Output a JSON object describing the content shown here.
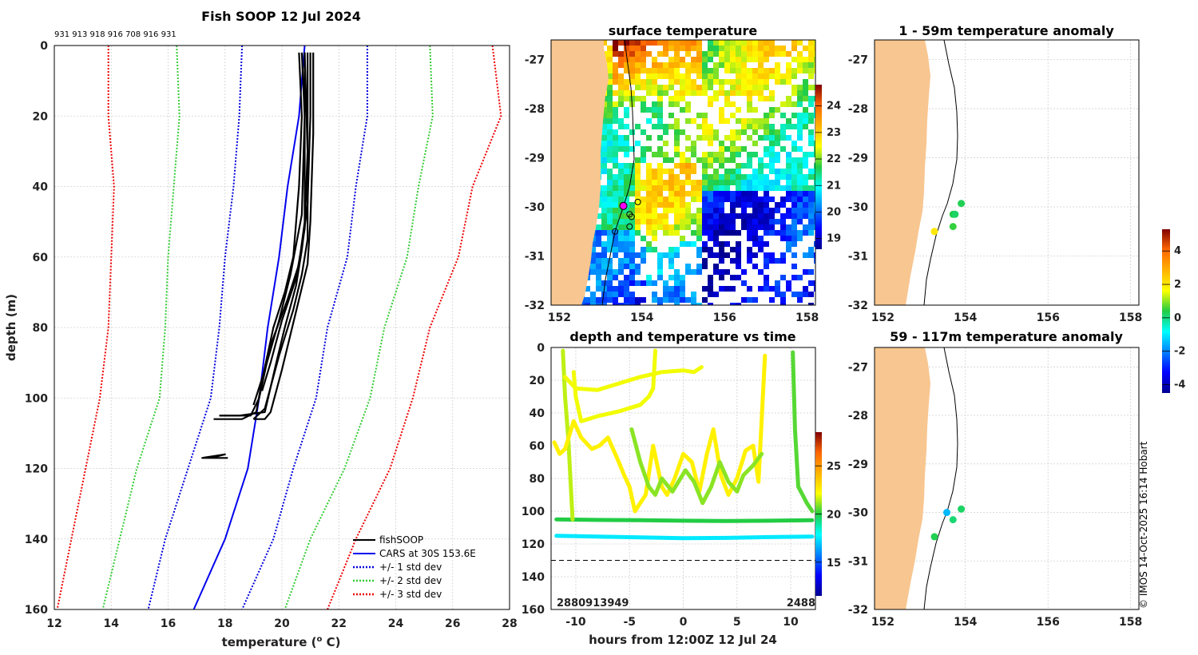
{
  "copyright": "© IMOS 14-Oct-2025 16:14 Hobart",
  "colors": {
    "land": "#f8c690",
    "black": "#000000",
    "cars": "#0000ee",
    "std1": "#0000dd",
    "std2": "#33cc33",
    "std3": "#ee0000"
  },
  "chart_data": [
    {
      "id": "profile",
      "type": "line",
      "title": "Fish SOOP 12 Jul 2024",
      "top_labels": "931 913 918 916 708 916 931",
      "xlabel": "temperature (",
      "xlabel_sup": "o",
      "xlabel_end": " C)",
      "ylabel": "depth (m)",
      "xlim": [
        12,
        28
      ],
      "ylim": [
        0,
        160
      ],
      "xticks": [
        "12",
        "14",
        "16",
        "18",
        "20",
        "22",
        "24",
        "26",
        "28"
      ],
      "yticks": [
        "0",
        "20",
        "40",
        "60",
        "80",
        "100",
        "120",
        "140",
        "160"
      ],
      "legend": [
        "fishSOOP",
        "CARS at 30S 153.6E",
        "+/- 1 std dev",
        "+/- 2 std dev",
        "+/- 3 std dev"
      ],
      "cars": [
        [
          20.8,
          0
        ],
        [
          20.7,
          10
        ],
        [
          20.6,
          20
        ],
        [
          20.2,
          40
        ],
        [
          19.9,
          60
        ],
        [
          19.5,
          80
        ],
        [
          19.2,
          100
        ],
        [
          18.8,
          120
        ],
        [
          18.0,
          140
        ],
        [
          16.9,
          160
        ]
      ],
      "std1_lo": [
        [
          18.6,
          0
        ],
        [
          18.5,
          20
        ],
        [
          18.3,
          40
        ],
        [
          18.0,
          60
        ],
        [
          17.8,
          80
        ],
        [
          17.5,
          100
        ],
        [
          16.7,
          120
        ],
        [
          15.9,
          140
        ],
        [
          15.3,
          160
        ]
      ],
      "std1_hi": [
        [
          23.0,
          0
        ],
        [
          23.0,
          20
        ],
        [
          22.6,
          40
        ],
        [
          22.3,
          60
        ],
        [
          21.6,
          80
        ],
        [
          21.2,
          100
        ],
        [
          20.4,
          120
        ],
        [
          19.7,
          140
        ],
        [
          18.6,
          160
        ]
      ],
      "std2_lo": [
        [
          16.3,
          0
        ],
        [
          16.4,
          20
        ],
        [
          16.2,
          40
        ],
        [
          16.0,
          60
        ],
        [
          15.9,
          80
        ],
        [
          15.7,
          100
        ],
        [
          14.9,
          120
        ],
        [
          14.3,
          140
        ],
        [
          13.7,
          160
        ]
      ],
      "std2_hi": [
        [
          25.2,
          0
        ],
        [
          25.3,
          20
        ],
        [
          24.8,
          40
        ],
        [
          24.4,
          60
        ],
        [
          23.6,
          80
        ],
        [
          23.1,
          100
        ],
        [
          22.2,
          120
        ],
        [
          21.0,
          140
        ],
        [
          20.1,
          160
        ]
      ],
      "std3_lo": [
        [
          13.9,
          0
        ],
        [
          13.9,
          20
        ],
        [
          14.1,
          40
        ],
        [
          14.0,
          60
        ],
        [
          13.9,
          80
        ],
        [
          13.6,
          100
        ],
        [
          13.1,
          120
        ],
        [
          12.6,
          140
        ],
        [
          12.1,
          160
        ]
      ],
      "std3_hi": [
        [
          27.4,
          0
        ],
        [
          27.7,
          20
        ],
        [
          26.7,
          40
        ],
        [
          26.2,
          60
        ],
        [
          25.2,
          80
        ],
        [
          24.6,
          100
        ],
        [
          23.8,
          120
        ],
        [
          22.6,
          140
        ],
        [
          21.6,
          160
        ]
      ],
      "fish": [
        [
          [
            20.6,
            2
          ],
          [
            20.7,
            20
          ],
          [
            20.6,
            40
          ],
          [
            20.4,
            60
          ],
          [
            20.1,
            70
          ],
          [
            19.7,
            80
          ],
          [
            19.3,
            95
          ],
          [
            19.1,
            104
          ],
          [
            18.6,
            106
          ],
          [
            17.6,
            106
          ]
        ],
        [
          [
            20.8,
            2
          ],
          [
            20.8,
            25
          ],
          [
            20.8,
            50
          ],
          [
            20.6,
            62
          ],
          [
            20.2,
            72
          ],
          [
            19.6,
            85
          ],
          [
            19.2,
            100
          ],
          [
            18.9,
            105
          ],
          [
            17.8,
            105
          ]
        ],
        [
          [
            20.9,
            2
          ],
          [
            20.9,
            30
          ],
          [
            20.9,
            55
          ],
          [
            20.7,
            65
          ],
          [
            20.4,
            75
          ],
          [
            19.9,
            88
          ],
          [
            19.4,
            103
          ],
          [
            19.0,
            106
          ]
        ],
        [
          [
            21.0,
            2
          ],
          [
            21.0,
            20
          ],
          [
            20.9,
            45
          ],
          [
            20.7,
            58
          ],
          [
            20.5,
            68
          ],
          [
            20.1,
            80
          ],
          [
            19.8,
            90
          ],
          [
            19.4,
            104
          ],
          [
            18.5,
            105
          ],
          [
            17.8,
            105
          ]
        ],
        [
          [
            20.7,
            2
          ],
          [
            20.8,
            20
          ],
          [
            20.7,
            48
          ],
          [
            20.3,
            65
          ],
          [
            19.9,
            78
          ],
          [
            19.4,
            92
          ],
          [
            19.0,
            102
          ]
        ],
        [
          [
            21.1,
            2
          ],
          [
            21.1,
            25
          ],
          [
            21.0,
            50
          ],
          [
            20.9,
            62
          ],
          [
            20.6,
            72
          ],
          [
            20.3,
            82
          ],
          [
            20.0,
            92
          ],
          [
            19.6,
            104
          ],
          [
            19.4,
            106
          ],
          [
            19.0,
            106
          ]
        ],
        [
          [
            20.8,
            2
          ],
          [
            20.9,
            30
          ],
          [
            20.8,
            52
          ],
          [
            20.5,
            66
          ],
          [
            20.0,
            78
          ],
          [
            19.6,
            90
          ],
          [
            19.3,
            98
          ]
        ],
        [
          [
            17.5,
            117
          ],
          [
            18.0,
            116
          ],
          [
            17.2,
            117
          ],
          [
            18.1,
            117
          ]
        ]
      ]
    },
    {
      "id": "sst_map",
      "type": "heatmap",
      "title": "surface temperature",
      "xticks": [
        "152",
        "154",
        "156",
        "158"
      ],
      "yticks": [
        "-27",
        "-28",
        "-29",
        "-30",
        "-31",
        "-32"
      ],
      "xlim": [
        151.8,
        158.2
      ],
      "ylim": [
        -32.0,
        -26.6
      ],
      "cbar_ticks": [
        "24",
        "23",
        "22",
        "21",
        "20",
        "19"
      ],
      "cbar_range": [
        18.6,
        24.8
      ],
      "stations": [
        [
          153.9,
          -29.9
        ],
        [
          153.7,
          -30.15
        ],
        [
          153.75,
          -30.2
        ],
        [
          153.7,
          -30.4
        ],
        [
          153.35,
          -30.5
        ]
      ],
      "current_station": [
        153.55,
        -29.98
      ]
    },
    {
      "id": "depth_time",
      "type": "scatter",
      "title": "depth and temperature vs time",
      "xlabel": "hours from 12:00Z 12 Jul 24",
      "xlim": [
        -12.3,
        12.3
      ],
      "ylim": [
        0,
        160
      ],
      "xticks": [
        "-10",
        "-5",
        "0",
        "5",
        "10"
      ],
      "yticks": [
        "0",
        "20",
        "40",
        "60",
        "80",
        "100",
        "120",
        "140",
        "160"
      ],
      "cbar_ticks": [
        "25",
        "20",
        "15"
      ],
      "cbar_range": [
        11.5,
        28.5
      ],
      "dashed_depth": 130,
      "bottom_left_label": "2880913949",
      "bottom_right_label": "2488",
      "tracks": [
        {
          "temp": 20.0,
          "points": [
            [
              -11.8,
              105
            ],
            [
              -8,
              105.3
            ],
            [
              -4,
              105.5
            ],
            [
              0,
              105.8
            ],
            [
              4,
              106
            ],
            [
              8,
              105.8
            ],
            [
              12,
              105.5
            ]
          ]
        },
        {
          "temp": 17.5,
          "points": [
            [
              -11.8,
              115
            ],
            [
              -8,
              115.5
            ],
            [
              -4,
              116
            ],
            [
              0,
              116.5
            ],
            [
              4,
              116.3
            ],
            [
              8,
              115.8
            ],
            [
              12,
              115.5
            ]
          ]
        },
        {
          "temp": 21.5,
          "points": [
            [
              -11.2,
              2
            ],
            [
              -11.0,
              30
            ],
            [
              -10.7,
              55
            ],
            [
              -10.3,
              105
            ]
          ]
        },
        {
          "temp": 22.0,
          "points": [
            [
              -11.0,
              18
            ],
            [
              -10,
              25
            ],
            [
              -8,
              26
            ],
            [
              -6,
              22
            ],
            [
              -4,
              18
            ],
            [
              -2,
              15
            ],
            [
              0,
              14
            ],
            [
              1,
              15
            ],
            [
              1.7,
              12
            ]
          ]
        },
        {
          "temp": 22.0,
          "points": [
            [
              -10.2,
              15
            ],
            [
              -10,
              30
            ],
            [
              -9.5,
              45
            ],
            [
              -8,
              42
            ],
            [
              -6,
              39
            ],
            [
              -4,
              35
            ],
            [
              -3.2,
              30
            ],
            [
              -2.8,
              25
            ],
            [
              -2.6,
              2
            ]
          ]
        },
        {
          "temp": 22.5,
          "points": [
            [
              -12,
              58
            ],
            [
              -11.5,
              65
            ],
            [
              -11,
              62
            ],
            [
              -10.2,
              45
            ],
            [
              -9.5,
              55
            ],
            [
              -8.5,
              62
            ],
            [
              -7.8,
              60
            ],
            [
              -7.0,
              55
            ],
            [
              -6,
              70
            ],
            [
              -5.5,
              78
            ],
            [
              -5,
              85
            ],
            [
              -4.5,
              100
            ],
            [
              -3.5,
              90
            ],
            [
              -2.8,
              60
            ],
            [
              -2,
              85
            ],
            [
              -1.5,
              90
            ],
            [
              -0.8,
              80
            ],
            [
              0,
              65
            ],
            [
              0.8,
              70
            ],
            [
              1.5,
              88
            ],
            [
              2.2,
              65
            ],
            [
              2.8,
              50
            ],
            [
              3.5,
              78
            ],
            [
              4.2,
              90
            ],
            [
              5,
              80
            ],
            [
              5.8,
              63
            ],
            [
              6.5,
              60
            ],
            [
              7.0,
              82
            ],
            [
              7.6,
              5
            ]
          ]
        },
        {
          "temp": 21.0,
          "points": [
            [
              -4.8,
              50
            ],
            [
              -4.0,
              70
            ],
            [
              -3.2,
              85
            ],
            [
              -2.6,
              90
            ],
            [
              -2.0,
              80
            ],
            [
              -1.0,
              88
            ],
            [
              0.2,
              75
            ],
            [
              1.0,
              82
            ],
            [
              1.8,
              95
            ],
            [
              2.6,
              85
            ],
            [
              3.4,
              70
            ],
            [
              4.2,
              82
            ],
            [
              5.0,
              88
            ],
            [
              5.6,
              78
            ],
            [
              6.5,
              72
            ],
            [
              7.3,
              65
            ]
          ]
        },
        {
          "temp": 20.5,
          "points": [
            [
              10.2,
              3
            ],
            [
              10.4,
              50
            ],
            [
              10.7,
              85
            ],
            [
              11.1,
              90
            ],
            [
              11.5,
              95
            ],
            [
              12,
              100
            ]
          ]
        }
      ]
    },
    {
      "id": "anom_shallow",
      "type": "scatter",
      "title": "1 - 59m temperature anomaly",
      "xticks": [
        "152",
        "154",
        "156",
        "158"
      ],
      "yticks": [
        "-27",
        "-28",
        "-29",
        "-30",
        "-31",
        "-32"
      ],
      "xlim": [
        151.8,
        158.2
      ],
      "ylim": [
        -32.0,
        -26.6
      ],
      "points": [
        [
          153.9,
          -29.93,
          0.3
        ],
        [
          153.7,
          -30.15,
          0.4
        ],
        [
          153.75,
          -30.15,
          0.2
        ],
        [
          153.7,
          -30.4,
          0.5
        ],
        [
          153.25,
          -30.5,
          2.0
        ]
      ]
    },
    {
      "id": "anom_deep",
      "type": "scatter",
      "title": "59 - 117m temperature anomaly",
      "xticks": [
        "152",
        "154",
        "156",
        "158"
      ],
      "yticks": [
        "-27",
        "-28",
        "-29",
        "-30",
        "-31",
        "-32"
      ],
      "xlim": [
        151.8,
        158.2
      ],
      "ylim": [
        -32.0,
        -26.6
      ],
      "points": [
        [
          153.9,
          -29.93,
          0.2
        ],
        [
          153.55,
          -30.0,
          -1.5
        ],
        [
          153.7,
          -30.15,
          0.1
        ],
        [
          153.25,
          -30.5,
          0.3
        ]
      ]
    },
    {
      "id": "anom_colorbar",
      "type": "colorbar",
      "ticks": [
        "4",
        "2",
        "0",
        "-2",
        "-4"
      ],
      "range": [
        -4.5,
        5.3
      ]
    }
  ]
}
